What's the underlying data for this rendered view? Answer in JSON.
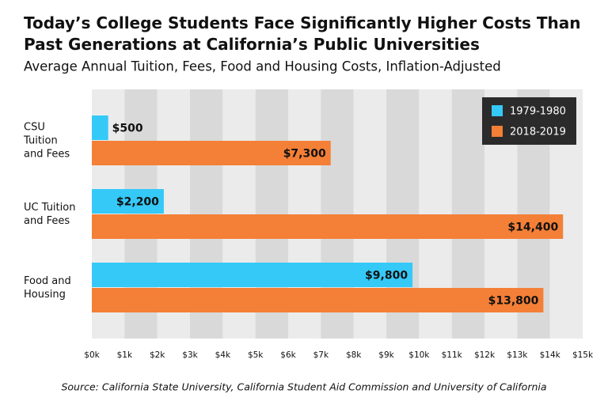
{
  "chart_data": {
    "type": "bar",
    "orientation": "horizontal",
    "title": "Today’s College Students Face Significantly Higher Costs Than Past Generations at California’s Public Universities",
    "subtitle": "Average Annual Tuition, Fees, Food and Housing Costs, Inflation-Adjusted",
    "source": "Source: California State University, California Student Aid Commission and University of California",
    "categories": [
      "CSU\nTuition\nand Fees",
      "UC Tuition\nand Fees",
      "Food and\nHousing"
    ],
    "series": [
      {
        "name": "1979-1980",
        "color": "#35c9f8",
        "values": [
          500,
          2200,
          9800
        ],
        "value_labels": [
          "$500",
          "$2,200",
          "$9,800"
        ]
      },
      {
        "name": "2018-2019",
        "color": "#f47f36",
        "values": [
          7300,
          14400,
          13800
        ],
        "value_labels": [
          "$7,300",
          "$14,400",
          "$13,800"
        ]
      }
    ],
    "xlim": [
      0,
      15000
    ],
    "xticks": [
      {
        "value": 0,
        "label": "$0k"
      },
      {
        "value": 1000,
        "label": "$1k"
      },
      {
        "value": 2000,
        "label": "$2k"
      },
      {
        "value": 3000,
        "label": "$3k"
      },
      {
        "value": 4000,
        "label": "$4k"
      },
      {
        "value": 5000,
        "label": "$5k"
      },
      {
        "value": 6000,
        "label": "$6k"
      },
      {
        "value": 7000,
        "label": "$7k"
      },
      {
        "value": 8000,
        "label": "$8k"
      },
      {
        "value": 9000,
        "label": "$9k"
      },
      {
        "value": 10000,
        "label": "$10k"
      },
      {
        "value": 11000,
        "label": "$11k"
      },
      {
        "value": 12000,
        "label": "$12k"
      },
      {
        "value": 13000,
        "label": "$13k"
      },
      {
        "value": 14000,
        "label": "$14k"
      },
      {
        "value": 15000,
        "label": "$15k"
      }
    ],
    "legend": "top-right",
    "grid": true
  }
}
